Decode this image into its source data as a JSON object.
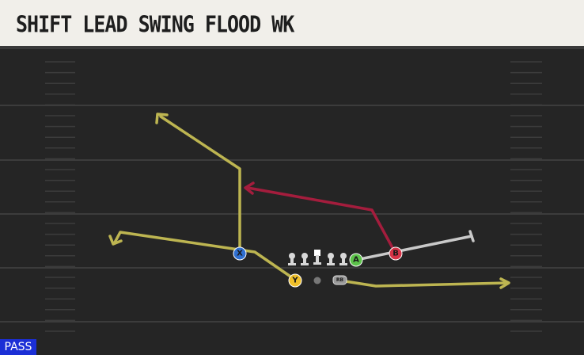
{
  "header": {
    "title": "SHIFT LEAD SWING FLOOD WK"
  },
  "players": {
    "x": "X",
    "y": "Y",
    "a": "A",
    "b": "B",
    "rb": "RB"
  },
  "footer": {
    "label": "PASS"
  }
}
